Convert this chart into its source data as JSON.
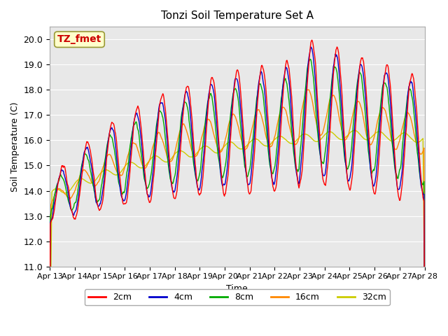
{
  "title": "Tonzi Soil Temperature Set A",
  "xlabel": "Time",
  "ylabel": "Soil Temperature (C)",
  "ylim": [
    11.0,
    20.5
  ],
  "yticks": [
    11.0,
    12.0,
    13.0,
    14.0,
    15.0,
    16.0,
    17.0,
    18.0,
    19.0,
    20.0
  ],
  "xtick_labels": [
    "Apr 13",
    "Apr 14",
    "Apr 15",
    "Apr 16",
    "Apr 17",
    "Apr 18",
    "Apr 19",
    "Apr 20",
    "Apr 21",
    "Apr 22",
    "Apr 23",
    "Apr 24",
    "Apr 25",
    "Apr 26",
    "Apr 27",
    "Apr 28"
  ],
  "legend_labels": [
    "2cm",
    "4cm",
    "8cm",
    "16cm",
    "32cm"
  ],
  "line_colors": [
    "#FF0000",
    "#0000CC",
    "#00AA00",
    "#FF8800",
    "#CCCC00"
  ],
  "annotation_text": "TZ_fmet",
  "annotation_color": "#CC0000",
  "annotation_bg": "#FFFFCC",
  "annotation_border": "#999933",
  "n_points": 720,
  "lw": 1.0
}
